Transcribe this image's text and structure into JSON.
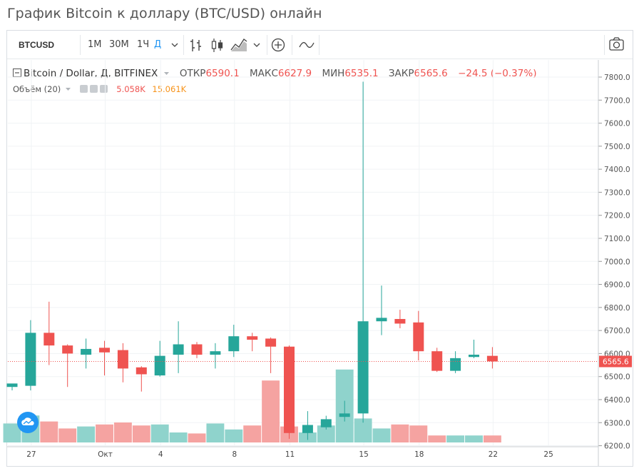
{
  "page": {
    "title": "График Bitcoin к доллару (BTC/USD) онлайн"
  },
  "toolbar": {
    "symbol": "BTCUSD",
    "intervals": [
      "1M",
      "30M",
      "1Ч",
      "Д"
    ],
    "active_interval": "Д",
    "icons": [
      "chevron-down-icon",
      "bars-icon",
      "candles-icon",
      "area-icon",
      "chevron-down-icon",
      "plus-circle-icon",
      "wave-icon",
      "camera-icon"
    ]
  },
  "legend": {
    "pair": "Bitcoin / Dollar, Д, BITFINEX",
    "open_label": "ОТКР",
    "open": "6590.1",
    "high_label": "МАКС",
    "high": "6627.9",
    "low_label": "МИН",
    "low": "6535.1",
    "close_label": "ЗАКР",
    "close": "6565.6",
    "change": "−24.5 (−0.37%)"
  },
  "volume_legend": {
    "label": "Объём (20)",
    "value1": "5.058K",
    "value2": "15.061K"
  },
  "colors": {
    "up": "#26a69a",
    "down": "#ef5350",
    "up_volume": "#8fd3cc",
    "down_volume": "#f5a3a1",
    "price_line": "#ef5350"
  },
  "chart_data": {
    "type": "candlestick",
    "price_axis": {
      "min": 6150,
      "max": 7850,
      "ticks": [
        6200,
        6300,
        6400,
        6500,
        6600,
        6700,
        6800,
        6900,
        7000,
        7100,
        7200,
        7300,
        7400,
        7500,
        7600,
        7700,
        7800
      ]
    },
    "x_ticks": [
      {
        "label": "27",
        "index": 1
      },
      {
        "label": "Окт",
        "index": 5
      },
      {
        "label": "4",
        "index": 8
      },
      {
        "label": "8",
        "index": 12
      },
      {
        "label": "11",
        "index": 15
      },
      {
        "label": "15",
        "index": 19
      },
      {
        "label": "18",
        "index": 22
      },
      {
        "label": "22",
        "index": 26
      },
      {
        "label": "25",
        "index": 29
      }
    ],
    "last_price": "6565.6",
    "candles": [
      {
        "o": 6455,
        "h": 6460,
        "l": 6440,
        "c": 6470
      },
      {
        "o": 6460,
        "h": 6745,
        "l": 6440,
        "c": 6690
      },
      {
        "o": 6690,
        "h": 6825,
        "l": 6550,
        "c": 6635
      },
      {
        "o": 6635,
        "h": 6640,
        "l": 6455,
        "c": 6600
      },
      {
        "o": 6595,
        "h": 6665,
        "l": 6535,
        "c": 6620
      },
      {
        "o": 6625,
        "h": 6655,
        "l": 6505,
        "c": 6605
      },
      {
        "o": 6615,
        "h": 6645,
        "l": 6475,
        "c": 6535
      },
      {
        "o": 6540,
        "h": 6545,
        "l": 6435,
        "c": 6510
      },
      {
        "o": 6505,
        "h": 6655,
        "l": 6500,
        "c": 6590
      },
      {
        "o": 6595,
        "h": 6740,
        "l": 6515,
        "c": 6640
      },
      {
        "o": 6640,
        "h": 6650,
        "l": 6580,
        "c": 6595
      },
      {
        "o": 6595,
        "h": 6645,
        "l": 6535,
        "c": 6610
      },
      {
        "o": 6610,
        "h": 6725,
        "l": 6585,
        "c": 6675
      },
      {
        "o": 6675,
        "h": 6690,
        "l": 6610,
        "c": 6660
      },
      {
        "o": 6665,
        "h": 6670,
        "l": 6515,
        "c": 6630
      },
      {
        "o": 6630,
        "h": 6635,
        "l": 6230,
        "c": 6255
      },
      {
        "o": 6255,
        "h": 6350,
        "l": 6225,
        "c": 6290
      },
      {
        "o": 6280,
        "h": 6330,
        "l": 6270,
        "c": 6315
      },
      {
        "o": 6325,
        "h": 6395,
        "l": 6305,
        "c": 6340
      },
      {
        "o": 6340,
        "h": 7780,
        "l": 6300,
        "c": 6740
      },
      {
        "o": 6740,
        "h": 6895,
        "l": 6680,
        "c": 6755
      },
      {
        "o": 6750,
        "h": 6790,
        "l": 6710,
        "c": 6730
      },
      {
        "o": 6735,
        "h": 6785,
        "l": 6570,
        "c": 6610
      },
      {
        "o": 6610,
        "h": 6625,
        "l": 6520,
        "c": 6525
      },
      {
        "o": 6525,
        "h": 6610,
        "l": 6515,
        "c": 6580
      },
      {
        "o": 6585,
        "h": 6660,
        "l": 6580,
        "c": 6595
      },
      {
        "o": 6590,
        "h": 6628,
        "l": 6535,
        "c": 6566
      }
    ],
    "volumes": [
      0.19,
      0.27,
      0.21,
      0.14,
      0.16,
      0.18,
      0.2,
      0.17,
      0.18,
      0.1,
      0.09,
      0.19,
      0.13,
      0.17,
      0.62,
      0.16,
      0.1,
      0.17,
      0.73,
      0.24,
      0.14,
      0.18,
      0.17,
      0.07,
      0.07,
      0.07,
      0.07
    ]
  }
}
